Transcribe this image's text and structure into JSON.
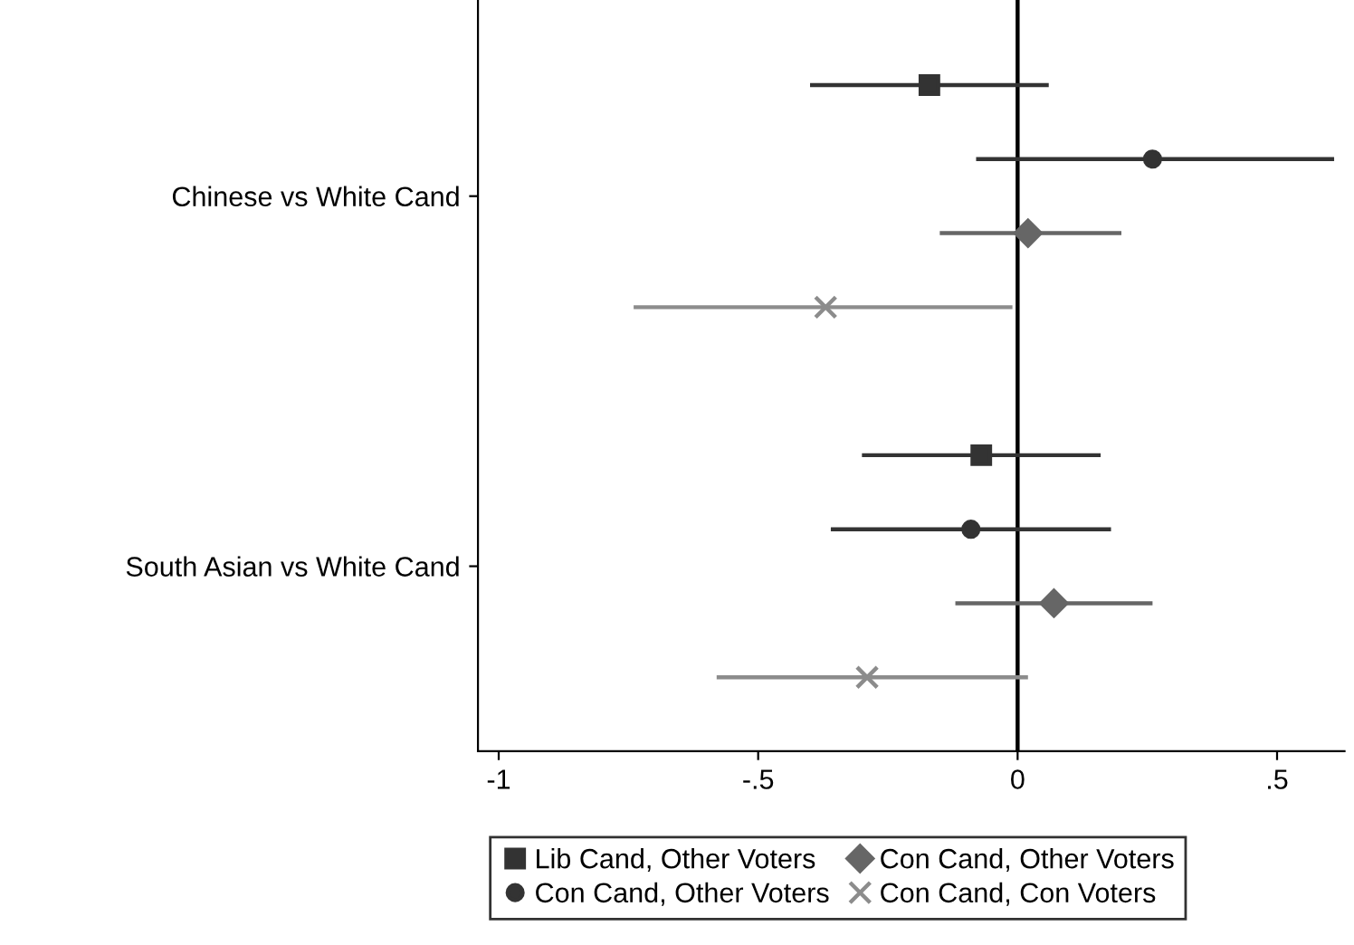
{
  "chart_data": {
    "type": "scatter",
    "orientation": "horizontal",
    "categories": [
      "Chinese vs White Cand",
      "South Asian vs White Cand"
    ],
    "series": [
      {
        "name": "Lib Cand, Other Voters",
        "color": "#333333",
        "marker": "square",
        "values": [
          -0.17,
          -0.07
        ],
        "errors": [
          [
            -0.4,
            0.06
          ],
          [
            -0.3,
            0.16
          ]
        ]
      },
      {
        "name": "Con Cand, Other Voters",
        "color": "#333333",
        "marker": "circle",
        "values": [
          0.26,
          -0.09
        ],
        "errors": [
          [
            -0.08,
            0.61
          ],
          [
            -0.36,
            0.18
          ]
        ]
      },
      {
        "name": "Con Cand, Other Voters",
        "color": "#666666",
        "marker": "diamond",
        "values": [
          0.02,
          0.07
        ],
        "errors": [
          [
            -0.15,
            0.2
          ],
          [
            -0.12,
            0.26
          ]
        ]
      },
      {
        "name": "Con Cand, Con Voters",
        "color": "#8c8c8c",
        "marker": "cross",
        "values": [
          -0.37,
          -0.29
        ],
        "errors": [
          [
            -0.74,
            -0.01
          ],
          [
            -0.58,
            0.02
          ]
        ]
      }
    ],
    "xlim": [
      -1.04,
      0.63
    ],
    "xticks": [
      {
        "value": -1,
        "label": "-1"
      },
      {
        "value": -0.5,
        "label": "-.5"
      },
      0,
      {
        "value": 0.5,
        "label": ".5"
      }
    ],
    "ref_lines": [
      {
        "axis": "x",
        "value": 0,
        "color": "#000000"
      }
    ],
    "grid": false,
    "legend": "bottom"
  }
}
